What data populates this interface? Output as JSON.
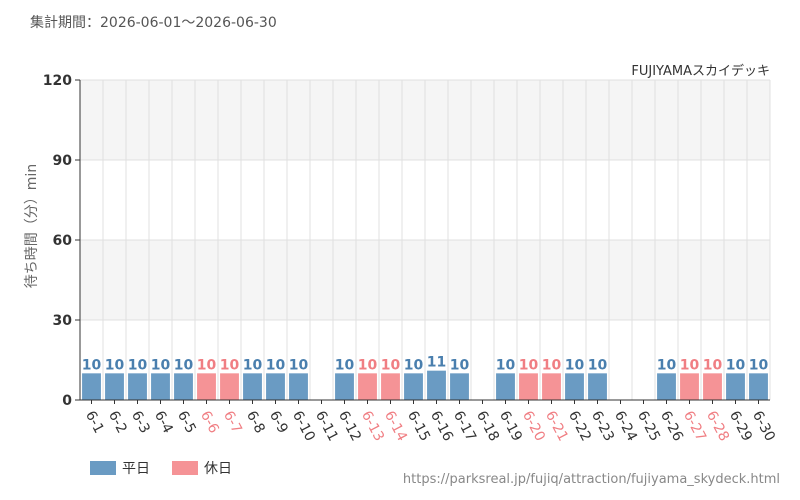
{
  "header": {
    "period": "集計期間：2026-06-01～2026-06-30"
  },
  "source_url": "https://parksreal.jp/fujiq/attraction/fujiyama_skydeck.html",
  "colors": {
    "weekday": "#6a9bc3",
    "holiday": "#f59396",
    "weekday_label": "#4a7fae",
    "holiday_label": "#f07e83",
    "tick_weekday": "#333333",
    "tick_holiday": "#f07e83",
    "band": "#f5f5f5",
    "grid": "#e0e0e0"
  },
  "chart_data": {
    "type": "bar",
    "title": "FUJIYAMAスカイデッキ",
    "ylabel": "待ち時間（分）min",
    "xlabel": "",
    "ylim": [
      0,
      120
    ],
    "yticks": [
      0,
      30,
      60,
      90,
      120
    ],
    "grid": true,
    "legend_position": "bottom-left",
    "legend": [
      {
        "key": "weekday",
        "label": "平日"
      },
      {
        "key": "holiday",
        "label": "休日"
      }
    ],
    "categories": [
      "6-1",
      "6-2",
      "6-3",
      "6-4",
      "6-5",
      "6-6",
      "6-7",
      "6-8",
      "6-9",
      "6-10",
      "6-11",
      "6-12",
      "6-13",
      "6-14",
      "6-15",
      "6-16",
      "6-17",
      "6-18",
      "6-19",
      "6-20",
      "6-21",
      "6-22",
      "6-23",
      "6-24",
      "6-25",
      "6-26",
      "6-27",
      "6-28",
      "6-29",
      "6-30"
    ],
    "values": [
      10,
      10,
      10,
      10,
      10,
      10,
      10,
      10,
      10,
      10,
      null,
      10,
      10,
      10,
      10,
      11,
      10,
      null,
      10,
      10,
      10,
      10,
      10,
      null,
      null,
      10,
      10,
      10,
      10,
      10
    ],
    "day_types": [
      "weekday",
      "weekday",
      "weekday",
      "weekday",
      "weekday",
      "holiday",
      "holiday",
      "weekday",
      "weekday",
      "weekday",
      "weekday",
      "weekday",
      "holiday",
      "holiday",
      "weekday",
      "weekday",
      "weekday",
      "weekday",
      "weekday",
      "holiday",
      "holiday",
      "weekday",
      "weekday",
      "weekday",
      "weekday",
      "weekday",
      "holiday",
      "holiday",
      "weekday",
      "weekday"
    ]
  }
}
